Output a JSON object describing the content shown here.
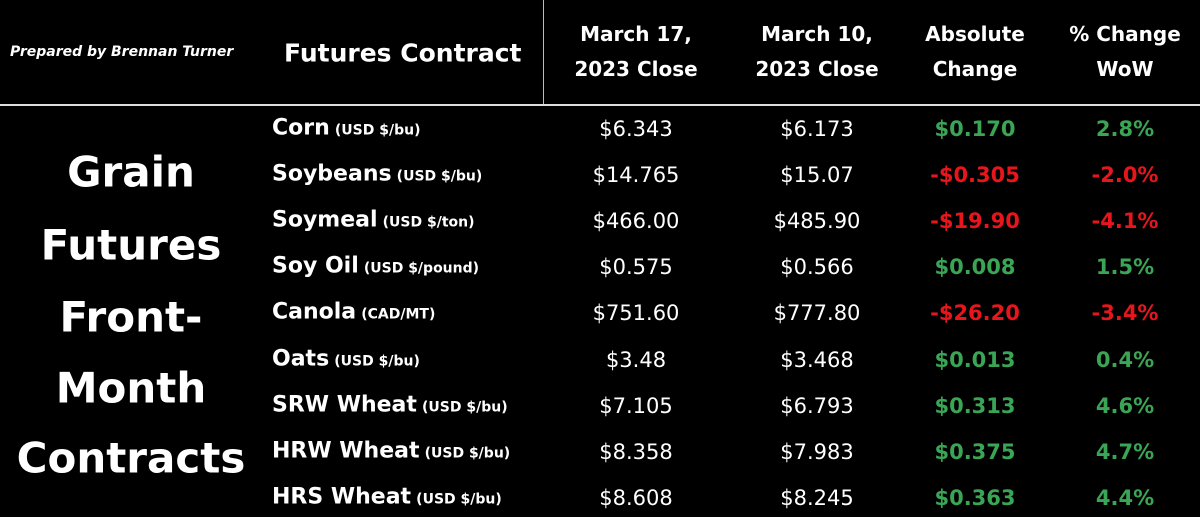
{
  "header": {
    "prepared_by": "Prepared by Brennan Turner",
    "contract_column": "Futures Contract",
    "columns": [
      [
        "March 17,",
        "2023 Close"
      ],
      [
        "March 10,",
        "2023 Close"
      ],
      [
        "Absolute",
        "Change"
      ],
      [
        "% Change",
        "WoW"
      ]
    ]
  },
  "side_title": [
    "Grain",
    "Futures",
    "Front-",
    "Month",
    "Contracts"
  ],
  "colors": {
    "positive": "#3aa655",
    "negative": "#e8161c"
  },
  "table": {
    "rows": [
      [
        "Corn",
        "(USD $/bu)",
        "$6.343",
        "$6.173",
        "$0.170",
        "2.8%"
      ],
      [
        "Soybeans",
        "(USD $/bu)",
        "$14.765",
        "$15.07",
        "-$0.305",
        "-2.0%"
      ],
      [
        "Soymeal",
        "(USD $/ton)",
        "$466.00",
        "$485.90",
        "-$19.90",
        "-4.1%"
      ],
      [
        "Soy Oil",
        "(USD $/pound)",
        "$0.575",
        "$0.566",
        "$0.008",
        "1.5%"
      ],
      [
        "Canola",
        "(CAD/MT)",
        "$751.60",
        "$777.80",
        "-$26.20",
        "-3.4%"
      ],
      [
        "Oats",
        "(USD $/bu)",
        "$3.48",
        "$3.468",
        "$0.013",
        "0.4%"
      ],
      [
        "SRW Wheat",
        "(USD $/bu)",
        "$7.105",
        "$6.793",
        "$0.313",
        "4.6%"
      ],
      [
        "HRW Wheat",
        "(USD $/bu)",
        "$8.358",
        "$7.983",
        "$0.375",
        "4.7%"
      ],
      [
        "HRS Wheat",
        "(USD $/bu)",
        "$8.608",
        "$8.245",
        "$0.363",
        "4.4%"
      ]
    ]
  }
}
